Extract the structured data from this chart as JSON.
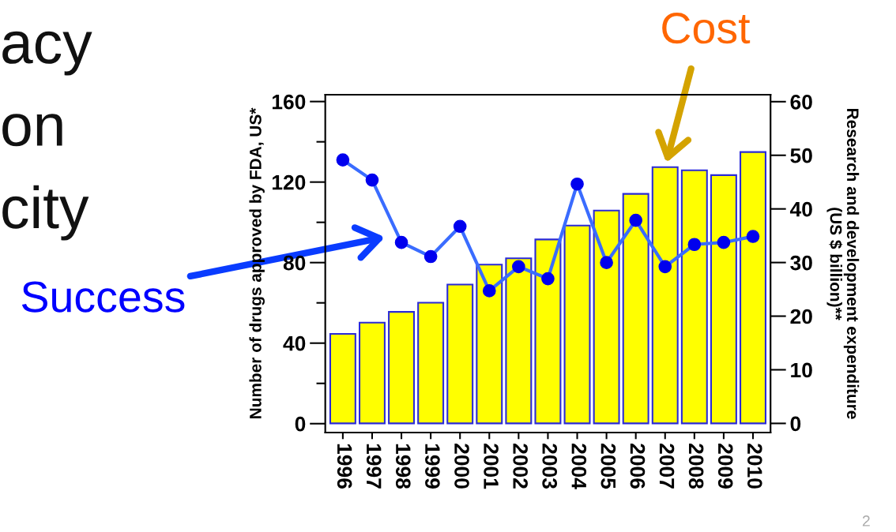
{
  "chart_data": {
    "type": "bar",
    "categories": [
      "1996",
      "1997",
      "1998",
      "1999",
      "2000",
      "2001",
      "2002",
      "2003",
      "2004",
      "2005",
      "2006",
      "2007",
      "2008",
      "2009",
      "2010"
    ],
    "series": [
      {
        "axis": "y2",
        "color": "#ffff00",
        "values": [
          16.7,
          18.8,
          20.8,
          22.5,
          25.9,
          29.6,
          30.8,
          34.3,
          36.9,
          39.7,
          42.8,
          47.8,
          47.2,
          46.3,
          50.6
        ]
      },
      {
        "type": "line",
        "color": "#3a6cff",
        "marker": "circle",
        "values": [
          131,
          121,
          90,
          83,
          98,
          66,
          78,
          72,
          119,
          80,
          101,
          78,
          89,
          90,
          93
        ]
      }
    ],
    "ylabel": "Number of drugs approved by FDA, US*",
    "y2label": "Research and development expenditure\n(US $ billion)**",
    "ylim": [
      -4.4,
      163.4
    ],
    "yticks": [
      0,
      {
        "value": 20,
        "label": null
      },
      40,
      {
        "value": 60,
        "label": null
      },
      80,
      {
        "value": 100,
        "label": null
      },
      120,
      {
        "value": 140,
        "label": null
      },
      160
    ],
    "y2lim": [
      -1.7,
      61.3
    ],
    "y2ticks": [
      0,
      10,
      20,
      30,
      40,
      50,
      60
    ],
    "annotations": [
      "Success",
      "Cost",
      "acy",
      "on",
      "city",
      "2"
    ],
    "grid": false,
    "legend": false
  }
}
